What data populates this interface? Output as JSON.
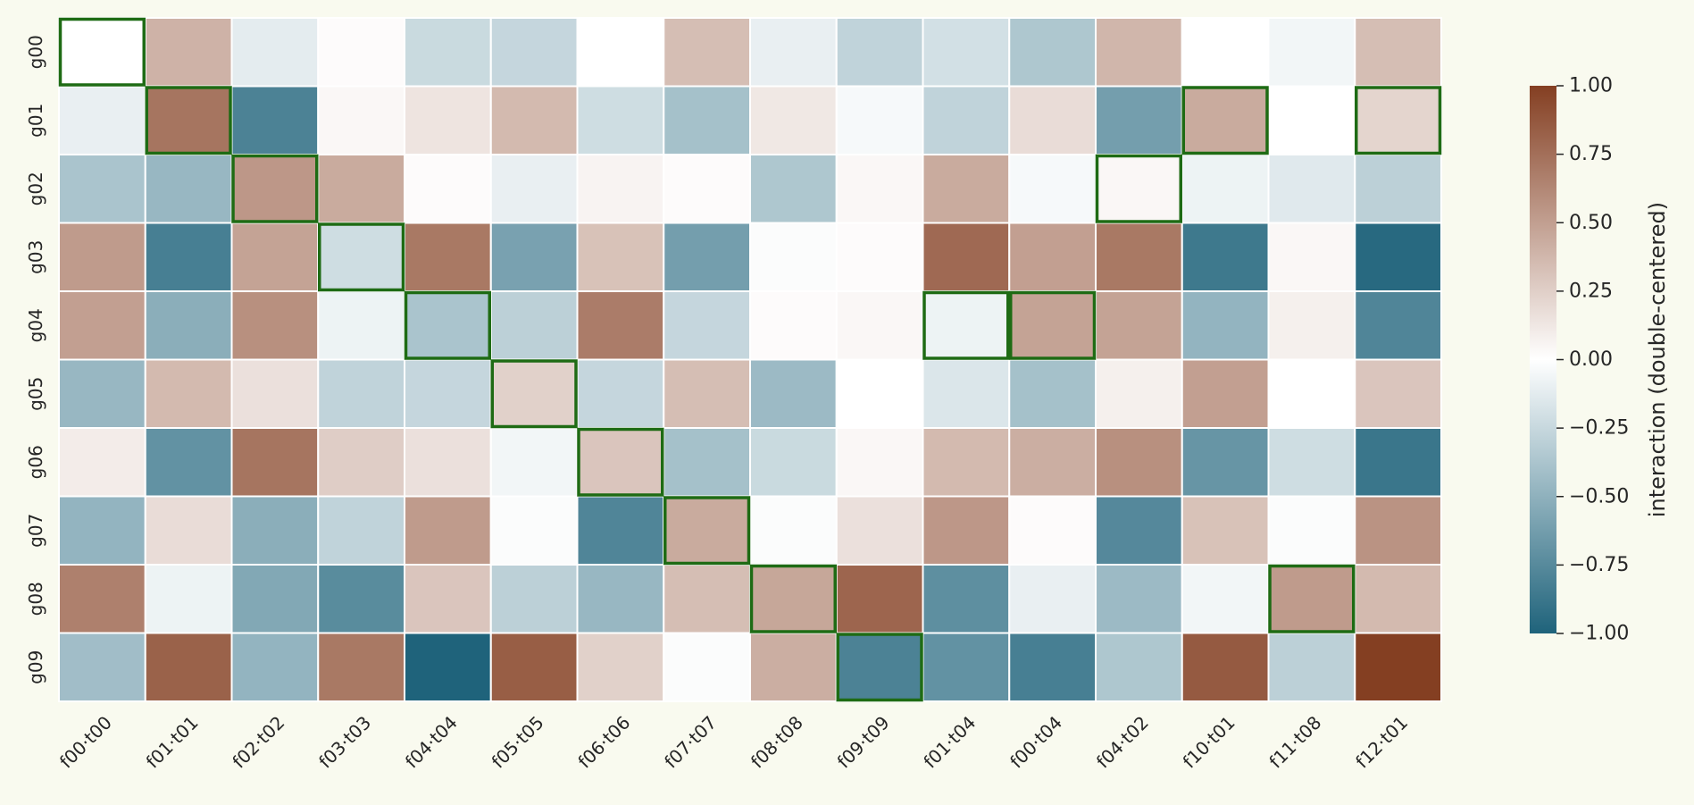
{
  "chart_data": {
    "type": "heatmap",
    "title": "",
    "xlabel": "",
    "ylabel": "",
    "rows": [
      "g00",
      "g01",
      "g02",
      "g03",
      "g04",
      "g05",
      "g06",
      "g07",
      "g08",
      "g09"
    ],
    "columns": [
      "f00·t00",
      "f01·t01",
      "f02·t02",
      "f03·t03",
      "f04·t04",
      "f05·t05",
      "f06·t06",
      "f07·t07",
      "f08·t08",
      "f09·t09",
      "f01·t04",
      "f00·t04",
      "f04·t02",
      "f10·t01",
      "f11·t08",
      "f12·t01"
    ],
    "values": [
      [
        0.0,
        0.4,
        -0.12,
        0.02,
        -0.24,
        -0.26,
        0.0,
        0.34,
        -0.1,
        -0.28,
        -0.2,
        -0.36,
        0.38,
        0.0,
        -0.06,
        0.34
      ],
      [
        -0.1,
        0.72,
        -0.8,
        0.04,
        0.14,
        0.36,
        -0.22,
        -0.4,
        0.12,
        -0.04,
        -0.28,
        0.18,
        -0.62,
        0.44,
        0.0,
        0.22
      ],
      [
        -0.38,
        -0.46,
        0.54,
        0.44,
        0.02,
        -0.1,
        0.06,
        0.02,
        -0.36,
        0.04,
        0.44,
        -0.04,
        0.04,
        -0.08,
        -0.14,
        -0.3
      ],
      [
        0.52,
        -0.82,
        0.48,
        -0.22,
        0.7,
        -0.6,
        0.32,
        -0.62,
        -0.02,
        0.02,
        0.78,
        0.5,
        0.7,
        -0.86,
        0.04,
        -0.96
      ],
      [
        0.5,
        -0.52,
        0.58,
        -0.08,
        -0.38,
        -0.3,
        0.68,
        -0.26,
        0.02,
        0.04,
        -0.08,
        0.48,
        0.48,
        -0.48,
        0.08,
        -0.78
      ],
      [
        -0.46,
        0.36,
        0.16,
        -0.28,
        -0.26,
        0.24,
        -0.26,
        0.34,
        -0.44,
        0.0,
        -0.16,
        -0.4,
        0.08,
        0.5,
        0.0,
        0.3
      ],
      [
        0.1,
        -0.7,
        0.72,
        0.26,
        0.16,
        -0.06,
        0.3,
        -0.4,
        -0.24,
        0.04,
        0.36,
        0.42,
        0.58,
        -0.68,
        -0.22,
        -0.88
      ],
      [
        -0.48,
        0.18,
        -0.52,
        -0.28,
        0.52,
        -0.02,
        -0.78,
        0.44,
        -0.02,
        0.16,
        0.54,
        0.02,
        -0.76,
        0.32,
        -0.02,
        0.56
      ],
      [
        0.66,
        -0.08,
        -0.56,
        -0.74,
        0.3,
        -0.3,
        -0.46,
        0.34,
        0.46,
        0.8,
        -0.72,
        -0.1,
        -0.44,
        -0.06,
        0.52,
        0.36
      ],
      [
        -0.42,
        0.82,
        -0.48,
        0.7,
        -1.0,
        0.84,
        0.24,
        -0.02,
        0.42,
        -0.8,
        -0.7,
        -0.82,
        -0.36,
        0.86,
        -0.3,
        1.0
      ]
    ],
    "highlighted_cells": [
      [
        0,
        0
      ],
      [
        1,
        1
      ],
      [
        2,
        2
      ],
      [
        3,
        3
      ],
      [
        4,
        4
      ],
      [
        5,
        5
      ],
      [
        6,
        6
      ],
      [
        7,
        7
      ],
      [
        8,
        8
      ],
      [
        9,
        9
      ],
      [
        4,
        10
      ],
      [
        4,
        11
      ],
      [
        2,
        12
      ],
      [
        1,
        13
      ],
      [
        8,
        14
      ],
      [
        1,
        15
      ]
    ],
    "vmin": -1.0,
    "vmax": 1.0,
    "colorbar": {
      "label": "interaction (double-centered)",
      "ticks": [
        1.0,
        0.75,
        0.5,
        0.25,
        0.0,
        -0.25,
        -0.5,
        -0.75,
        -1.0
      ],
      "tick_labels": [
        "1.00",
        "0.75",
        "0.50",
        "0.25",
        "0.00",
        "−0.25",
        "−0.50",
        "−0.75",
        "−1.00"
      ]
    },
    "colors": {
      "negative": "#1f637b",
      "neutral": "#ffffff",
      "positive": "#843f22",
      "highlight": "#1e6b14",
      "background": "#f9faef"
    },
    "grid": false,
    "legend": "right"
  }
}
